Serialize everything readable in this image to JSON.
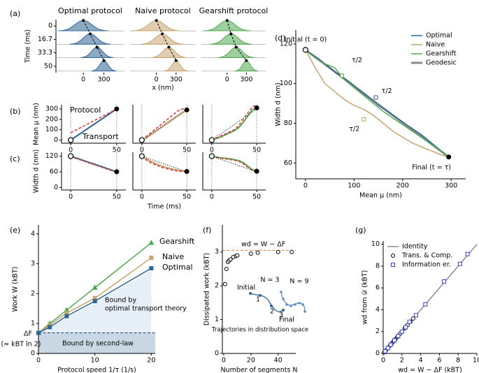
{
  "chart_data": [
    {
      "type": "ridgeline",
      "label": "(a)",
      "titles": [
        "Optimal protocol",
        "Naive protocol",
        "Gearshift protocol"
      ],
      "colors": [
        "#2f6496",
        "#c9a46e",
        "#4fa84f"
      ],
      "ylabel": "Time (ms)",
      "ylim": [
        -8,
        58
      ],
      "invert_y": true,
      "yticks": [
        0,
        16.7,
        33.3,
        50
      ],
      "xlim": [
        -400,
        600
      ],
      "xticks": [
        0,
        300
      ],
      "xlabel": "x (nm)",
      "means": [
        [
          0,
          100,
          200,
          300
        ],
        [
          0,
          90,
          190,
          300
        ],
        [
          0,
          60,
          140,
          300
        ]
      ],
      "widths": [
        [
          120,
          100,
          80,
          60
        ],
        [
          120,
          110,
          90,
          60
        ],
        [
          120,
          110,
          95,
          60
        ]
      ]
    },
    {
      "type": "line",
      "label": "(b)",
      "ylabel": "Mean μ (nm)",
      "xlim": [
        -10,
        60
      ],
      "xticks": [
        0,
        50
      ],
      "ylim": [
        -30,
        340
      ],
      "yticks": [
        0,
        100,
        200,
        300
      ],
      "xtick_guides": true,
      "endpoints": true,
      "legend": "inline",
      "x": [
        0,
        5,
        10,
        15,
        20,
        25,
        30,
        35,
        40,
        45,
        50
      ],
      "series": [
        {
          "name": "Protocol",
          "color": "#e3342f",
          "dash": "dashed",
          "values": [
            70,
            93,
            116,
            139,
            162,
            185,
            208,
            231,
            254,
            277,
            300
          ]
        },
        {
          "name": "Transport",
          "color": "#2f6496",
          "width": 2,
          "values": [
            0,
            30,
            60,
            90,
            120,
            150,
            180,
            210,
            240,
            270,
            300
          ]
        }
      ]
    },
    {
      "type": "line",
      "xlim": [
        -10,
        60
      ],
      "xticks": [
        0,
        50
      ],
      "ylim": [
        -30,
        340
      ],
      "xtick_guides": true,
      "endpoints": true,
      "x": [
        0,
        5,
        10,
        15,
        20,
        25,
        30,
        35,
        40,
        45,
        50
      ],
      "series": [
        {
          "color": "#000000",
          "dash": "dotted",
          "width": 1,
          "values": [
            0,
            30,
            60,
            90,
            120,
            150,
            180,
            210,
            240,
            270,
            300
          ]
        },
        {
          "color": "#e3342f",
          "dash": "dashed",
          "values": [
            0,
            35,
            70,
            105,
            140,
            175,
            210,
            245,
            280,
            300,
            300
          ]
        },
        {
          "color": "#c9a46e",
          "width": 2,
          "values": [
            0,
            20,
            50,
            80,
            110,
            140,
            170,
            200,
            230,
            260,
            290
          ]
        }
      ]
    },
    {
      "type": "line",
      "xlim": [
        -10,
        60
      ],
      "xticks": [
        0,
        50
      ],
      "ylim": [
        -30,
        340
      ],
      "xtick_guides": true,
      "endpoints": true,
      "x": [
        0,
        5,
        10,
        15,
        20,
        25,
        30,
        35,
        40,
        45,
        50
      ],
      "series": [
        {
          "color": "#000000",
          "dash": "dotted",
          "width": 1,
          "values": [
            0,
            30,
            60,
            90,
            120,
            150,
            180,
            210,
            240,
            270,
            300
          ]
        },
        {
          "color": "#e3342f",
          "dash": "dashed",
          "values": [
            0,
            20,
            40,
            60,
            80,
            100,
            140,
            200,
            260,
            320,
            335
          ]
        },
        {
          "color": "#4fa84f",
          "width": 2,
          "values": [
            0,
            15,
            30,
            50,
            70,
            90,
            120,
            170,
            230,
            290,
            310
          ]
        }
      ]
    },
    {
      "type": "line",
      "label": "(c)",
      "ylabel": "Width d (nm)",
      "xlim": [
        -10,
        60
      ],
      "xticks": [
        0,
        50
      ],
      "ylim": [
        -10,
        135
      ],
      "yticks": [
        0,
        60,
        120
      ],
      "xtick_guides": true,
      "endpoints": true,
      "x": [
        0,
        5,
        10,
        15,
        20,
        25,
        30,
        35,
        40,
        45,
        50
      ],
      "series": [
        {
          "color": "#e3342f",
          "dash": "dashed",
          "values": [
            120,
            112,
            106,
            100,
            94,
            88,
            82,
            76,
            70,
            64,
            60
          ]
        },
        {
          "color": "#2f6496",
          "width": 2,
          "values": [
            120,
            114,
            108,
            102,
            96,
            90,
            84,
            78,
            72,
            66,
            60
          ]
        }
      ]
    },
    {
      "type": "line",
      "xlabel": "Time (ms)",
      "xlim": [
        -10,
        60
      ],
      "xticks": [
        0,
        50
      ],
      "ylim": [
        -10,
        135
      ],
      "xtick_guides": true,
      "endpoints": true,
      "x": [
        0,
        5,
        10,
        15,
        20,
        25,
        30,
        35,
        40,
        45,
        50
      ],
      "series": [
        {
          "color": "#000000",
          "dash": "dotted",
          "width": 1,
          "values": [
            120,
            114,
            108,
            102,
            96,
            90,
            84,
            78,
            72,
            66,
            60
          ]
        },
        {
          "color": "#e3342f",
          "dash": "dashed",
          "values": [
            120,
            105,
            95,
            87,
            80,
            74,
            70,
            66,
            63,
            61,
            60
          ]
        },
        {
          "color": "#c9a46e",
          "width": 2,
          "values": [
            120,
            110,
            100,
            92,
            85,
            79,
            74,
            70,
            66,
            63,
            61
          ]
        }
      ]
    },
    {
      "type": "line",
      "xlim": [
        -10,
        60
      ],
      "xticks": [
        0,
        50
      ],
      "ylim": [
        -10,
        135
      ],
      "xtick_guides": true,
      "endpoints": true,
      "x": [
        0,
        5,
        10,
        15,
        20,
        25,
        30,
        35,
        40,
        45,
        50
      ],
      "series": [
        {
          "color": "#000000",
          "dash": "dotted",
          "width": 1,
          "values": [
            120,
            114,
            108,
            102,
            96,
            90,
            84,
            78,
            72,
            66,
            60
          ]
        },
        {
          "color": "#e3342f",
          "dash": "dashed",
          "values": [
            120,
            115,
            112,
            110,
            107,
            104,
            100,
            90,
            78,
            66,
            60
          ]
        },
        {
          "color": "#4fa84f",
          "width": 2,
          "values": [
            120,
            117,
            114,
            112,
            110,
            107,
            103,
            95,
            82,
            68,
            62
          ]
        }
      ]
    },
    {
      "type": "line",
      "label": "(d)",
      "xlabel": "Mean μ (nm)",
      "ylabel": "Width d (nm)",
      "xlim": [
        -20,
        330
      ],
      "ylim": [
        52,
        127
      ],
      "xticks": [
        0,
        100,
        200,
        300
      ],
      "yticks": [
        60,
        80,
        100,
        120
      ],
      "legend": "upper right",
      "endpoints": true,
      "annotations": [
        {
          "text": "Initial (t = 0)"
        },
        {
          "text": "Final (t = τ)"
        }
      ],
      "series": [
        {
          "name": "Optimal",
          "color": "#2f6496",
          "x": [
            0,
            30,
            60,
            90,
            120,
            150,
            180,
            210,
            240,
            270,
            295
          ],
          "values": [
            117,
            112,
            106,
            101,
            95,
            89,
            84,
            79,
            74,
            68,
            63
          ],
          "tau_half": {
            "x": 145,
            "y": 93,
            "label": "τ/2"
          }
        },
        {
          "name": "Naive",
          "color": "#c9a46e",
          "x": [
            0,
            20,
            40,
            60,
            80,
            100,
            120,
            140,
            160,
            180,
            200,
            220,
            240,
            260,
            280,
            295
          ],
          "values": [
            117,
            108,
            100,
            96,
            92,
            89,
            87,
            84,
            80,
            76,
            73,
            70,
            68,
            66,
            64,
            63
          ],
          "tau_half": {
            "x": 120,
            "y": 82,
            "label": "τ/2"
          }
        },
        {
          "name": "Gearshift",
          "color": "#4fa84f",
          "x": [
            0,
            20,
            40,
            60,
            80,
            100,
            130,
            160,
            190,
            220,
            250,
            280,
            295
          ],
          "values": [
            117,
            113,
            110,
            108,
            102,
            98,
            92,
            86,
            81,
            76,
            71,
            66,
            63
          ],
          "tau_half": {
            "x": 75,
            "y": 104,
            "label": "τ/2"
          }
        },
        {
          "name": "Geodesic",
          "color": "#8a8a8a",
          "width": 3,
          "x": [
            0,
            295
          ],
          "values": [
            117,
            63
          ]
        }
      ]
    },
    {
      "type": "line",
      "label": "(e)",
      "xlabel": "Protocol speed 1/τ (1/s)",
      "ylabel": "Work W (kBT)",
      "xlim": [
        0,
        20.7
      ],
      "ylim": [
        0,
        4.3
      ],
      "xticks": [
        0,
        10,
        20
      ],
      "yticks": [
        0,
        1,
        2,
        3,
        4
      ],
      "x": [
        0,
        2,
        5,
        10,
        20
      ],
      "legend": "inline",
      "hline": {
        "value": 0.69,
        "label": "ΔF",
        "color": "#1a3f6b",
        "shade": "#c9d6e3"
      },
      "annotations": [
        {
          "text": "(≈ kBT ln 2)"
        },
        {
          "text": "Bound by",
          "color": "#2f6496"
        },
        {
          "text": "optimal transport theory",
          "color": "#2f6496"
        },
        {
          "text": "Bound by second-law"
        }
      ],
      "series": [
        {
          "color": "#e6eff8",
          "fill": true,
          "line": false,
          "values": [
            0.69,
            0.85,
            1.2,
            1.7,
            2.78
          ]
        },
        {
          "name": "Gearshift",
          "color": "#4fa84f",
          "marker": "^",
          "values": [
            0.69,
            1.0,
            1.45,
            2.2,
            3.7
          ]
        },
        {
          "name": "Naive",
          "color": "#c9a46e",
          "marker": "s",
          "values": [
            0.69,
            0.95,
            1.35,
            1.85,
            3.2
          ]
        },
        {
          "name": "Optimal",
          "color": "#2f6496",
          "marker": "s",
          "values": [
            0.69,
            0.88,
            1.25,
            1.75,
            2.85
          ]
        }
      ]
    },
    {
      "type": "scatter",
      "label": "(f)",
      "xlabel": "Number of segments N",
      "ylabel": "Dissipated work (kBT)",
      "xlim": [
        -1,
        53
      ],
      "ylim": [
        0,
        3.8
      ],
      "xticks": [
        0,
        20,
        40
      ],
      "yticks": [
        0,
        1,
        2,
        3
      ],
      "hline": {
        "value": 3.05,
        "label": "wd = W − ΔF",
        "color": "#e07b39"
      },
      "annotations": [
        {
          "text": "Initial"
        },
        {
          "text": "N = 3",
          "color": "#2f6496"
        },
        {
          "text": "1",
          "color": "#2f6496"
        },
        {
          "text": "2",
          "color": "#2f6496"
        },
        {
          "text": "3",
          "color": "#2f6496"
        },
        {
          "text": "Final"
        },
        {
          "text": "N = 9",
          "color": "#2f6496"
        },
        {
          "text": "Trajectories in distribution space"
        }
      ],
      "series": [
        {
          "color": "#000000",
          "marker": "o",
          "hollow": true,
          "line": false,
          "x": [
            1,
            2,
            3,
            4,
            5,
            7,
            9,
            10,
            20,
            25,
            40,
            50
          ],
          "values": [
            2.05,
            2.5,
            2.7,
            2.75,
            2.78,
            2.85,
            2.88,
            2.9,
            2.95,
            2.98,
            3.0,
            3.0
          ]
        }
      ]
    },
    {
      "type": "scatter",
      "label": "(g)",
      "xlabel": "wd = W − ΔF (kBT)",
      "ylabel": "wd from 𝒟 (kBT)",
      "xlim": [
        0,
        10
      ],
      "ylim": [
        0,
        10.3
      ],
      "xticks": [
        0,
        2,
        4,
        6,
        8,
        10
      ],
      "yticks": [
        0,
        2,
        4,
        6,
        8,
        10
      ],
      "legend": "upper left",
      "series": [
        {
          "name": "Identity",
          "color": "#8a8a8a",
          "x": [
            0,
            10
          ],
          "values": [
            0,
            10
          ]
        },
        {
          "name": "Trans. & Comp.",
          "color": "#000000",
          "marker": "o",
          "hollow": true,
          "line": false,
          "x": [
            0.1,
            0.2,
            0.3,
            0.5,
            0.7,
            0.9,
            1.1,
            1.3,
            1.5,
            1.8,
            2.0,
            2.3,
            2.6,
            2.9,
            3.2
          ],
          "values": [
            0.1,
            0.2,
            0.3,
            0.5,
            0.7,
            0.9,
            1.1,
            1.3,
            1.5,
            1.8,
            2.0,
            2.3,
            2.6,
            2.9,
            3.2
          ]
        },
        {
          "name": "Information er.",
          "color": "#2f3fd0",
          "marker": "s",
          "hollow": true,
          "line": false,
          "x": [
            0.2,
            0.5,
            0.8,
            1.2,
            1.6,
            2.0,
            2.4,
            2.8,
            3.5,
            4.5,
            6.5,
            8.2,
            9.0
          ],
          "values": [
            0.2,
            0.5,
            0.8,
            1.2,
            1.6,
            2.0,
            2.4,
            2.9,
            3.5,
            4.5,
            6.6,
            8.2,
            9.1
          ]
        }
      ]
    }
  ]
}
